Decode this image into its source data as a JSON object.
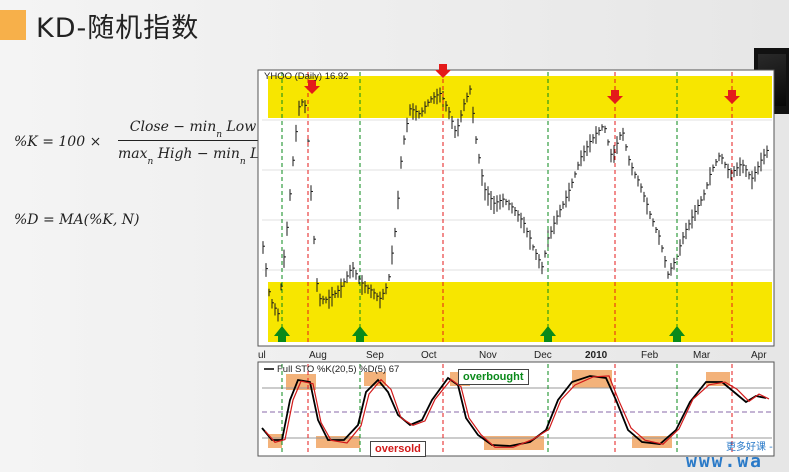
{
  "header": {
    "title": "KD-随机指数",
    "accent_color": "#f7b04a"
  },
  "formulas": {
    "k_lhs": "%K = 100 ×",
    "k_num_a": "Close − min",
    "k_num_sub": "n",
    "k_num_b": " Low",
    "k_den_a": "max",
    "k_den_sub1": "n",
    "k_den_b": " High − min",
    "k_den_sub2": "n",
    "k_den_c": " Low",
    "d": "%D = MA(%K, N)"
  },
  "price_chart": {
    "label": "YHOO (Daily) 16.92",
    "band_color": "#f7e600",
    "x_axis_labels": [
      "ul",
      "Aug",
      "Sep",
      "Oct",
      "Nov",
      "Dec",
      "2010",
      "Feb",
      "Mar",
      "Apr"
    ],
    "bold_label": "2010"
  },
  "stochastic": {
    "legend": "Full STO %K(20,5) %D(5) 67",
    "overbought_label": "overbought",
    "oversold_label": "oversold",
    "k_color": "#d21a1a",
    "d_color": "#000000",
    "zone_color": "#f3b27a"
  },
  "signals": {
    "buy_color": "#0a8a1a",
    "sell_color": "#e41a1a"
  },
  "watermark": {
    "line1": "更多好课 -",
    "line2": "www.wa"
  }
}
